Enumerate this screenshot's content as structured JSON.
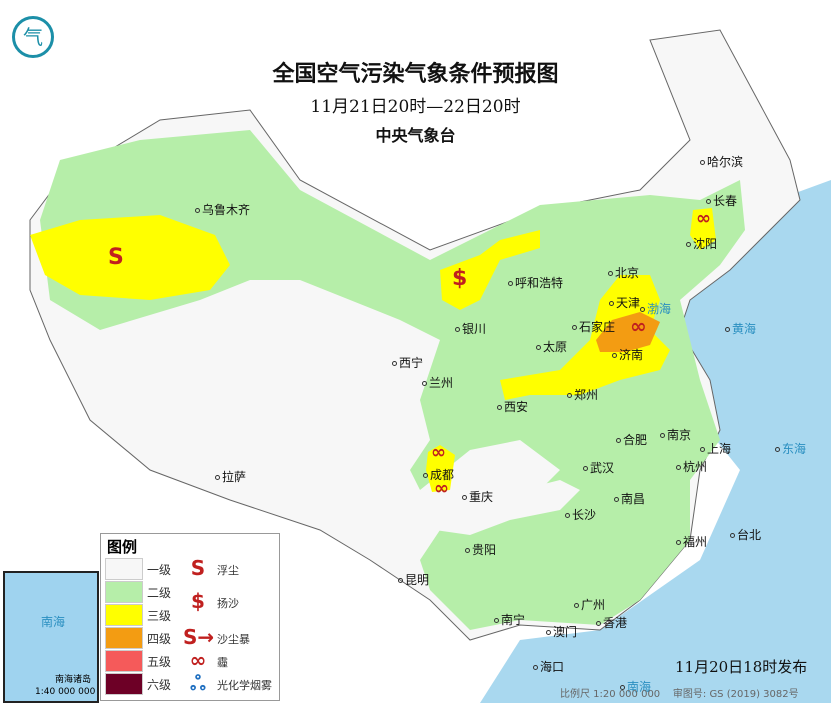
{
  "header": {
    "title": "全国空气污染气象条件预报图",
    "period": "11月21日20时—22日20时",
    "issuer": "中央气象台"
  },
  "cities": [
    "乌鲁木齐",
    "哈尔滨",
    "长春",
    "沈阳",
    "北京",
    "天津",
    "呼和浩特",
    "石家庄",
    "太原",
    "济南",
    "银川",
    "西宁",
    "兰州",
    "西安",
    "郑州",
    "合肥",
    "南京",
    "上海",
    "杭州",
    "武汉",
    "成都",
    "重庆",
    "拉萨",
    "长沙",
    "南昌",
    "贵阳",
    "福州",
    "台北",
    "昆明",
    "广州",
    "南宁",
    "澳门",
    "香港",
    "海口"
  ],
  "legend": {
    "title": "图例",
    "levels": [
      {
        "label": "一级",
        "color": "#f7f7f7"
      },
      {
        "label": "二级",
        "color": "#b6eea9"
      },
      {
        "label": "三级",
        "color": "#ffff00"
      },
      {
        "label": "四级",
        "color": "#f39c12"
      },
      {
        "label": "五级",
        "color": "#f55a5a"
      },
      {
        "label": "六级",
        "color": "#6d0026"
      }
    ],
    "symbols": [
      {
        "label": "浮尘",
        "icon": "floating-dust-icon"
      },
      {
        "label": "扬沙",
        "icon": "blowing-sand-icon"
      },
      {
        "label": "沙尘暴",
        "icon": "sandstorm-icon"
      },
      {
        "label": "霾",
        "icon": "haze-icon"
      },
      {
        "label": "光化学烟雾",
        "icon": "photochemical-smog-icon"
      }
    ]
  },
  "inset": {
    "sea": "南海",
    "islands": "南海诸岛",
    "scale": "1:40 000 000"
  },
  "footer": {
    "issued": "11月20日18时发布",
    "scale": "比例尺 1:20 000 000",
    "approval": "审图号: GS (2019) 3082号"
  },
  "sea_labels": [
    "渤海",
    "黄海",
    "东海",
    "南海"
  ]
}
